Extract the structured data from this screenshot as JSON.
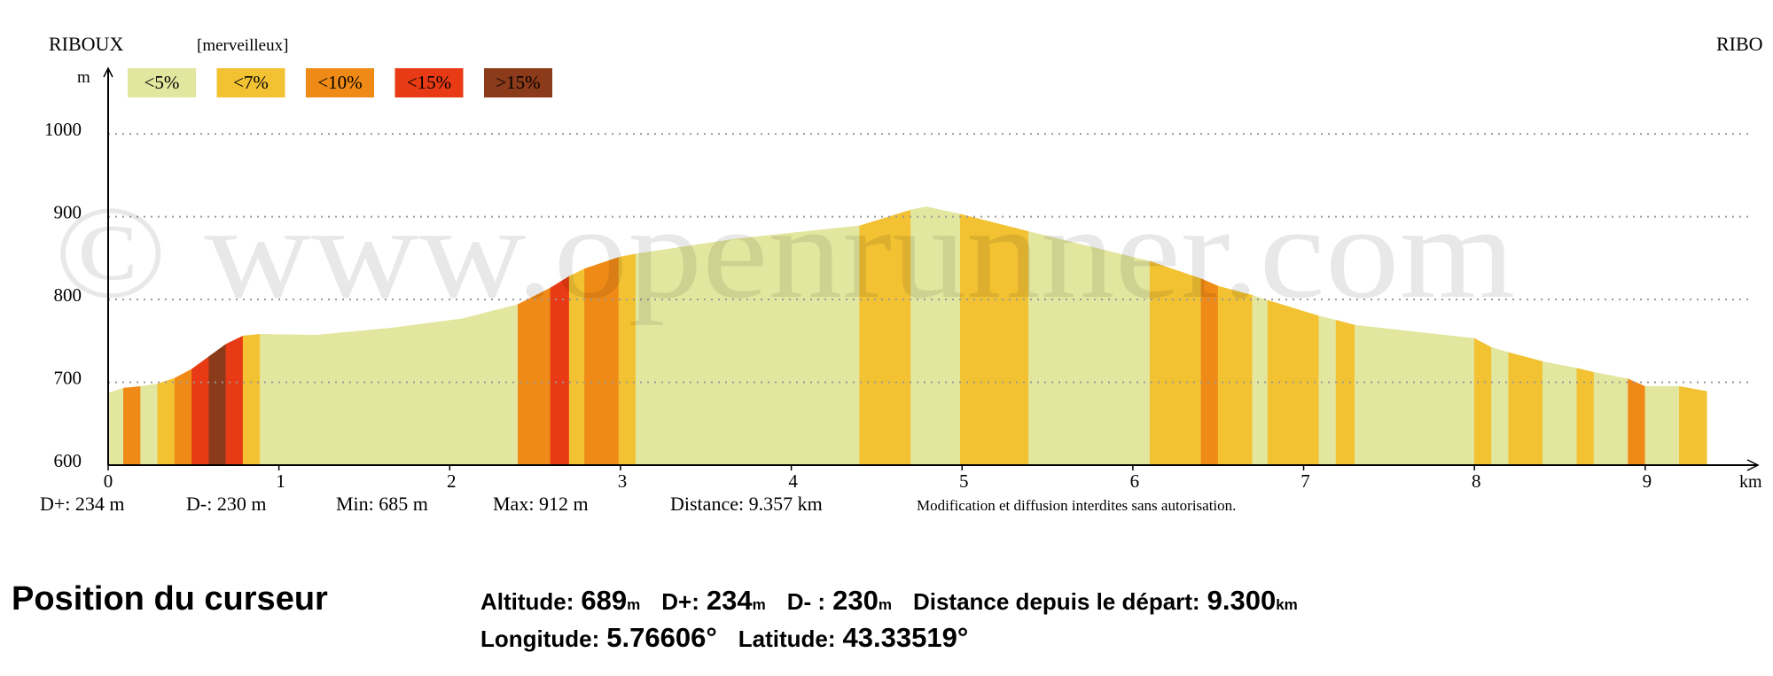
{
  "chart_data": {
    "type": "elevation-profile",
    "title": "RIBOUX",
    "subtitle": "[merveilleux]",
    "title_right": "RIBO",
    "ylabel": "m",
    "xlabel": "km",
    "watermark": "© www.openrunner.com",
    "legend": [
      {
        "name": "<5%",
        "color": "#e3e69e"
      },
      {
        "name": "<7%",
        "color": "#f2c233"
      },
      {
        "name": "<10%",
        "color": "#f08a16"
      },
      {
        "name": "<15%",
        "color": "#e83a14"
      },
      {
        "name": ">15%",
        "color": "#8b3a1a"
      }
    ],
    "x": [
      0.0,
      0.09,
      0.19,
      0.29,
      0.39,
      0.49,
      0.59,
      0.69,
      0.79,
      0.89,
      1.22,
      1.68,
      2.08,
      2.4,
      2.59,
      2.7,
      2.79,
      2.99,
      3.09,
      3.67,
      4.4,
      4.7,
      4.79,
      4.99,
      5.39,
      6.1,
      6.4,
      6.5,
      6.7,
      6.79,
      7.09,
      7.19,
      7.3,
      8.0,
      8.1,
      8.2,
      8.4,
      8.6,
      8.7,
      8.9,
      9.0,
      9.2,
      9.36
    ],
    "values": [
      687,
      693,
      695,
      698,
      705,
      716,
      731,
      746,
      756,
      758,
      757,
      766,
      777,
      794,
      814,
      828,
      837,
      851,
      855,
      873,
      889,
      908,
      912,
      903,
      882,
      846,
      825,
      816,
      805,
      799,
      780,
      775,
      769,
      753,
      742,
      736,
      725,
      717,
      712,
      704,
      695,
      695,
      689
    ],
    "segment_classes": [
      0,
      2,
      0,
      1,
      2,
      3,
      4,
      3,
      1,
      0,
      0,
      0,
      0,
      2,
      3,
      1,
      2,
      1,
      0,
      0,
      1,
      0,
      0,
      1,
      0,
      1,
      2,
      1,
      0,
      1,
      0,
      1,
      0,
      1,
      0,
      1,
      0,
      1,
      0,
      2,
      0,
      1
    ],
    "xlim": [
      0,
      9.66
    ],
    "ylim": [
      600,
      1075
    ],
    "xticks": [
      0,
      1,
      2,
      3,
      4,
      5,
      6,
      7,
      8,
      9
    ],
    "yticks": [
      600,
      700,
      800,
      900,
      1000
    ],
    "grid": true,
    "stats": [
      "D+: 234 m",
      "D-: 230 m",
      "Min: 685 m",
      "Max: 912 m",
      "Distance: 9.357 km"
    ],
    "notice": "Modification et diffusion interdites sans autorisation."
  },
  "cursor": {
    "title": "Position du curseur",
    "lines": [
      [
        {
          "label": "Altitude:",
          "value": "689",
          "unit": "m"
        },
        {
          "label": "D+:",
          "value": "234",
          "unit": "m"
        },
        {
          "label": "D- :",
          "value": "230",
          "unit": "m"
        },
        {
          "label": "Distance depuis le départ:",
          "value": "9.300",
          "unit": "km"
        }
      ],
      [
        {
          "label": "Longitude:",
          "value": "5.76606°"
        },
        {
          "label": "Latitude:",
          "value": "43.33519°"
        }
      ]
    ]
  }
}
